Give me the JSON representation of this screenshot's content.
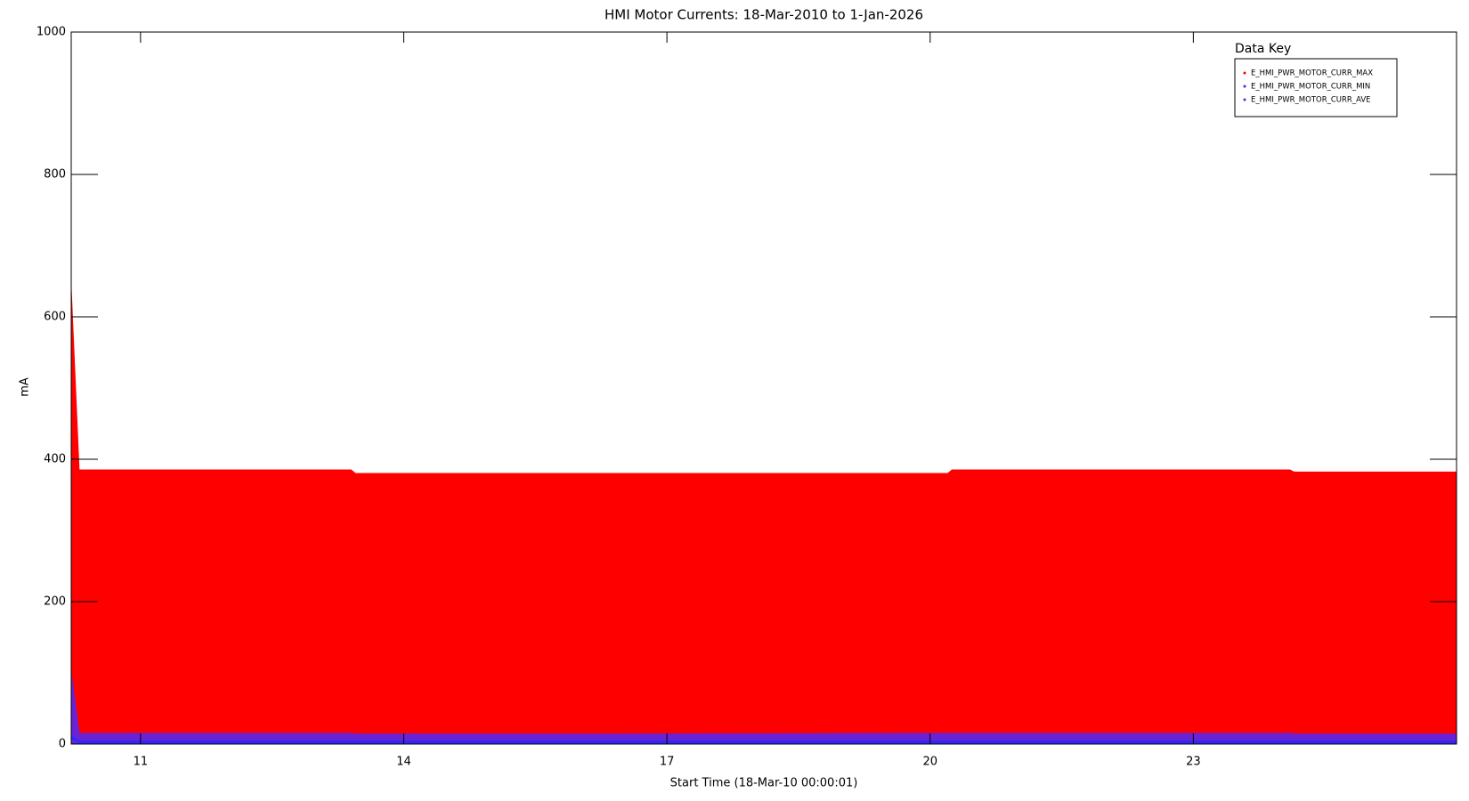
{
  "chart_data": {
    "type": "area",
    "title": "HMI Motor Currents: 18-Mar-2010 to 1-Jan-2026",
    "x_label": "Start Time (18-Mar-10 00:00:01)",
    "y_label": "mA",
    "legend_title": "Data Key",
    "legend_position": "top-right",
    "x": [
      2010.21,
      2010.3,
      2013.4,
      2013.45,
      2016.5,
      2020.2,
      2020.25,
      2024.1,
      2024.15,
      2026.0
    ],
    "series": [
      {
        "name": "E_HMI_PWR_MOTOR_CURR_MAX",
        "color": "#ff0000",
        "values": [
          640,
          385,
          385,
          380,
          380,
          380,
          385,
          385,
          382,
          382
        ]
      },
      {
        "name": "E_HMI_PWR_MOTOR_CURR_MIN",
        "color": "#2a2aff",
        "values": [
          10,
          3,
          3,
          3,
          3,
          3,
          3,
          3,
          3,
          3
        ]
      },
      {
        "name": "E_HMI_PWR_MOTOR_CURR_AVE",
        "color": "#6a22d6",
        "values": [
          100,
          15,
          15,
          14,
          14,
          15,
          15,
          15,
          14,
          14
        ]
      }
    ],
    "xlim": [
      2010.21,
      2026.0
    ],
    "xticks": [
      {
        "value": 2011,
        "label": "11"
      },
      {
        "value": 2014,
        "label": "14"
      },
      {
        "value": 2017,
        "label": "17"
      },
      {
        "value": 2020,
        "label": "20"
      },
      {
        "value": 2023,
        "label": "23"
      }
    ],
    "ylim": [
      0,
      1000
    ],
    "yticks": [
      0,
      200,
      400,
      600,
      800,
      1000
    ]
  }
}
